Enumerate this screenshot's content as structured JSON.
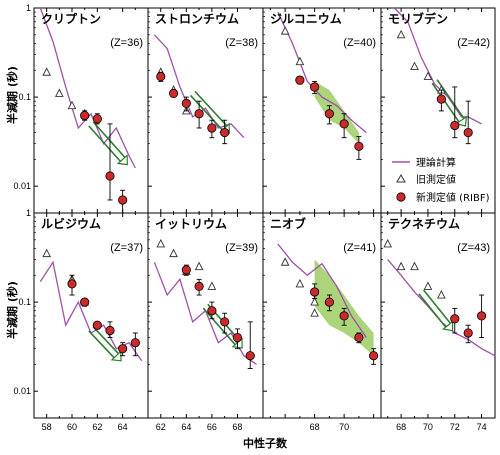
{
  "figure": {
    "ylabel": "半減期 (秒)",
    "xlabel": "中性子数",
    "ylabel_bottom": "半減期 (秒)"
  },
  "legend": {
    "theory": "理論計算",
    "old": "旧測定値",
    "new": "新測定値 (RIBF)"
  },
  "colors": {
    "theory": "#a050a8",
    "new_fill": "#cc2a2a",
    "shade": "#9ccc64",
    "arrow": "#2e7d32"
  },
  "x_ticks": {
    "col0": [
      58,
      60,
      62,
      64
    ],
    "col1": [
      62,
      64,
      66,
      68
    ],
    "col2": [
      68,
      70
    ],
    "col3": [
      68,
      70,
      72,
      74
    ]
  },
  "y_ticks": [
    "1",
    "0.1",
    "0.01"
  ],
  "chart_data": [
    {
      "type": "scatter",
      "row": 0,
      "col": 0,
      "title": "クリプトン",
      "z": "(Z=36)",
      "xlim": [
        57,
        66
      ],
      "ylim": [
        0.005,
        1
      ],
      "yscale": "log",
      "theory": [
        [
          57.5,
          1.0
        ],
        [
          58.5,
          0.42
        ],
        [
          59.5,
          0.13
        ],
        [
          60.5,
          0.045
        ],
        [
          61.5,
          0.065
        ],
        [
          62.5,
          0.03
        ],
        [
          63.5,
          0.045
        ],
        [
          64.5,
          0.022
        ],
        [
          65.0,
          0.016
        ]
      ],
      "old": [
        [
          58,
          0.19
        ],
        [
          59,
          0.11
        ],
        [
          60,
          0.08
        ],
        [
          61,
          0.065
        ]
      ],
      "new": [
        {
          "x": 61,
          "y": 0.062,
          "lo": 0.055,
          "hi": 0.07
        },
        {
          "x": 62,
          "y": 0.057,
          "lo": 0.05,
          "hi": 0.065
        },
        {
          "x": 63,
          "y": 0.013,
          "lo": 0.007,
          "hi": 0.05
        },
        {
          "x": 64,
          "y": 0.007,
          "lo": 0.005,
          "hi": 0.009
        }
      ],
      "arrow": [
        [
          61.5,
          0.05
        ],
        [
          64.0,
          0.02
        ]
      ],
      "shade": null
    },
    {
      "type": "scatter",
      "row": 0,
      "col": 1,
      "title": "ストロンチウム",
      "z": "(Z=38)",
      "xlim": [
        61,
        70
      ],
      "ylim": [
        0.005,
        1
      ],
      "yscale": "log",
      "theory": [
        [
          61.5,
          0.5
        ],
        [
          62.5,
          0.35
        ],
        [
          63.5,
          0.13
        ],
        [
          64.5,
          0.06
        ],
        [
          65.5,
          0.075
        ],
        [
          66.5,
          0.045
        ],
        [
          67.5,
          0.05
        ],
        [
          68.5,
          0.035
        ]
      ],
      "old": [
        [
          62,
          0.19
        ],
        [
          63,
          0.12
        ],
        [
          64,
          0.07
        ]
      ],
      "new": [
        {
          "x": 62,
          "y": 0.17,
          "lo": 0.15,
          "hi": 0.19
        },
        {
          "x": 63,
          "y": 0.11,
          "lo": 0.1,
          "hi": 0.12
        },
        {
          "x": 64,
          "y": 0.085,
          "lo": 0.07,
          "hi": 0.1
        },
        {
          "x": 65,
          "y": 0.065,
          "lo": 0.045,
          "hi": 0.09
        },
        {
          "x": 66,
          "y": 0.045,
          "lo": 0.035,
          "hi": 0.055
        },
        {
          "x": 67,
          "y": 0.04,
          "lo": 0.03,
          "hi": 0.055
        }
      ],
      "arrow": [
        [
          64.5,
          0.11
        ],
        [
          67.0,
          0.045
        ]
      ],
      "shade": null
    },
    {
      "type": "scatter",
      "row": 0,
      "col": 2,
      "title": "ジルコニウム",
      "z": "(Z=40)",
      "xlim": [
        64.5,
        72.5
      ],
      "ylim": [
        0.005,
        1
      ],
      "yscale": "log",
      "theory": [
        [
          65.5,
          0.9
        ],
        [
          66.5,
          0.4
        ],
        [
          67.5,
          0.15
        ],
        [
          68.5,
          0.1
        ],
        [
          69.5,
          0.08
        ],
        [
          70.5,
          0.055
        ],
        [
          71.5,
          0.04
        ]
      ],
      "old": [
        [
          66,
          0.55
        ],
        [
          67,
          0.25
        ]
      ],
      "new": [
        {
          "x": 67,
          "y": 0.155,
          "lo": 0.14,
          "hi": 0.17
        },
        {
          "x": 68,
          "y": 0.13,
          "lo": 0.11,
          "hi": 0.15
        },
        {
          "x": 69,
          "y": 0.065,
          "lo": 0.05,
          "hi": 0.08
        },
        {
          "x": 70,
          "y": 0.05,
          "lo": 0.035,
          "hi": 0.065
        },
        {
          "x": 71,
          "y": 0.028,
          "lo": 0.02,
          "hi": 0.036
        }
      ],
      "arrow": null,
      "shade": [
        [
          68,
          0.15
        ],
        [
          69,
          0.12
        ],
        [
          70,
          0.07
        ],
        [
          71,
          0.04
        ],
        [
          71,
          0.03
        ],
        [
          70,
          0.045
        ],
        [
          69,
          0.055
        ],
        [
          68,
          0.1
        ]
      ]
    },
    {
      "type": "scatter",
      "row": 0,
      "col": 3,
      "title": "モリブデン",
      "z": "(Z=42)",
      "xlim": [
        66.5,
        75
      ],
      "ylim": [
        0.005,
        1
      ],
      "yscale": "log",
      "theory": [
        [
          67.5,
          1.0
        ],
        [
          68.5,
          0.7
        ],
        [
          69.5,
          0.28
        ],
        [
          70.5,
          0.14
        ],
        [
          71.5,
          0.1
        ],
        [
          72.5,
          0.06
        ],
        [
          73.0,
          0.06
        ],
        [
          74.0,
          0.05
        ]
      ],
      "old": [
        [
          68,
          0.5
        ],
        [
          69,
          0.22
        ],
        [
          70,
          0.17
        ],
        [
          71,
          0.12
        ]
      ],
      "new": [
        {
          "x": 71,
          "y": 0.095,
          "lo": 0.07,
          "hi": 0.12
        },
        {
          "x": 72,
          "y": 0.048,
          "lo": 0.035,
          "hi": 0.13
        },
        {
          "x": 73,
          "y": 0.04,
          "lo": 0.03,
          "hi": 0.09
        }
      ],
      "arrow": [
        [
          70.5,
          0.15
        ],
        [
          72.5,
          0.055
        ]
      ],
      "shade": null
    },
    {
      "type": "scatter",
      "row": 1,
      "col": 0,
      "title": "ルビジウム",
      "z": "(Z=37)",
      "xlim": [
        57,
        66
      ],
      "ylim": [
        0.005,
        1
      ],
      "yscale": "log",
      "theory": [
        [
          57.5,
          0.17
        ],
        [
          58.5,
          0.28
        ],
        [
          59.5,
          0.055
        ],
        [
          60.5,
          0.1
        ],
        [
          61.5,
          0.045
        ],
        [
          62.5,
          0.055
        ],
        [
          63.5,
          0.03
        ],
        [
          64.5,
          0.035
        ],
        [
          65.5,
          0.022
        ]
      ],
      "old": [
        [
          58,
          0.35
        ],
        [
          60,
          0.18
        ],
        [
          61,
          0.1
        ]
      ],
      "new": [
        {
          "x": 60,
          "y": 0.16,
          "lo": 0.12,
          "hi": 0.2
        },
        {
          "x": 61,
          "y": 0.1,
          "lo": 0.09,
          "hi": 0.11
        },
        {
          "x": 62,
          "y": 0.055,
          "lo": 0.05,
          "hi": 0.06
        },
        {
          "x": 63,
          "y": 0.048,
          "lo": 0.04,
          "hi": 0.06
        },
        {
          "x": 64,
          "y": 0.03,
          "lo": 0.025,
          "hi": 0.035
        },
        {
          "x": 65,
          "y": 0.035,
          "lo": 0.025,
          "hi": 0.045
        }
      ],
      "arrow": [
        [
          61.5,
          0.05
        ],
        [
          63.5,
          0.025
        ]
      ],
      "shade": null
    },
    {
      "type": "scatter",
      "row": 1,
      "col": 1,
      "title": "イットリウム",
      "z": "(Z=39)",
      "xlim": [
        61,
        70
      ],
      "ylim": [
        0.005,
        1
      ],
      "yscale": "log",
      "theory": [
        [
          61.5,
          0.28
        ],
        [
          62.5,
          0.12
        ],
        [
          63.5,
          0.18
        ],
        [
          64.5,
          0.06
        ],
        [
          65.5,
          0.08
        ],
        [
          66.5,
          0.035
        ],
        [
          67.5,
          0.045
        ],
        [
          68.5,
          0.025
        ],
        [
          69.5,
          0.02
        ]
      ],
      "old": [
        [
          62,
          0.45
        ],
        [
          63,
          0.35
        ],
        [
          64,
          0.22
        ],
        [
          65,
          0.25
        ],
        [
          66,
          0.15
        ]
      ],
      "new": [
        {
          "x": 64,
          "y": 0.23,
          "lo": 0.2,
          "hi": 0.26
        },
        {
          "x": 65,
          "y": 0.15,
          "lo": 0.12,
          "hi": 0.18
        },
        {
          "x": 66,
          "y": 0.08,
          "lo": 0.065,
          "hi": 0.1
        },
        {
          "x": 67,
          "y": 0.06,
          "lo": 0.045,
          "hi": 0.075
        },
        {
          "x": 68,
          "y": 0.04,
          "lo": 0.03,
          "hi": 0.05
        },
        {
          "x": 69,
          "y": 0.025,
          "lo": 0.018,
          "hi": 0.06
        }
      ],
      "arrow": [
        [
          65.5,
          0.09
        ],
        [
          68.0,
          0.035
        ]
      ],
      "shade": null
    },
    {
      "type": "scatter",
      "row": 1,
      "col": 2,
      "title": "ニオブ",
      "z": "(Z=41)",
      "xlim": [
        64.5,
        72.5
      ],
      "ylim": [
        0.005,
        1
      ],
      "yscale": "log",
      "theory": [
        [
          65.5,
          0.45
        ],
        [
          66.5,
          0.28
        ],
        [
          67.5,
          0.2
        ],
        [
          68.5,
          0.27
        ],
        [
          69.5,
          0.15
        ],
        [
          70.5,
          0.07
        ],
        [
          71.5,
          0.04
        ]
      ],
      "old": [
        [
          66,
          0.28
        ],
        [
          67,
          0.16
        ],
        [
          68,
          0.1
        ],
        [
          68,
          0.075
        ]
      ],
      "new": [
        {
          "x": 68,
          "y": 0.13,
          "lo": 0.11,
          "hi": 0.16
        },
        {
          "x": 69,
          "y": 0.1,
          "lo": 0.08,
          "hi": 0.12
        },
        {
          "x": 70,
          "y": 0.07,
          "lo": 0.055,
          "hi": 0.085
        },
        {
          "x": 71,
          "y": 0.04,
          "lo": 0.035,
          "hi": 0.045
        },
        {
          "x": 72,
          "y": 0.025,
          "lo": 0.02,
          "hi": 0.03
        }
      ],
      "arrow": null,
      "shade": [
        [
          68,
          0.3
        ],
        [
          69,
          0.2
        ],
        [
          70,
          0.12
        ],
        [
          71,
          0.07
        ],
        [
          72,
          0.045
        ],
        [
          72,
          0.025
        ],
        [
          71,
          0.035
        ],
        [
          70,
          0.045
        ],
        [
          69,
          0.055
        ],
        [
          68,
          0.09
        ]
      ]
    },
    {
      "type": "scatter",
      "row": 1,
      "col": 3,
      "title": "テクネチウム",
      "z": "(Z=43)",
      "xlim": [
        66.5,
        75
      ],
      "ylim": [
        0.005,
        1
      ],
      "yscale": "log",
      "theory": [
        [
          67.0,
          0.3
        ],
        [
          68.0,
          0.2
        ],
        [
          69.0,
          0.13
        ],
        [
          70.0,
          0.09
        ],
        [
          71.0,
          0.06
        ],
        [
          72.0,
          0.045
        ],
        [
          73.0,
          0.038
        ],
        [
          74.0,
          0.03
        ],
        [
          75.0,
          0.025
        ]
      ],
      "old": [
        [
          67,
          0.45
        ],
        [
          68,
          0.25
        ],
        [
          69,
          0.25
        ],
        [
          70,
          0.15
        ],
        [
          71,
          0.12
        ]
      ],
      "new": [
        {
          "x": 72,
          "y": 0.065,
          "lo": 0.045,
          "hi": 0.085
        },
        {
          "x": 73,
          "y": 0.045,
          "lo": 0.035,
          "hi": 0.055
        },
        {
          "x": 74,
          "y": 0.07,
          "lo": 0.04,
          "hi": 0.12
        }
      ],
      "arrow": [
        [
          69.5,
          0.13
        ],
        [
          71.5,
          0.055
        ]
      ],
      "shade": null
    }
  ]
}
